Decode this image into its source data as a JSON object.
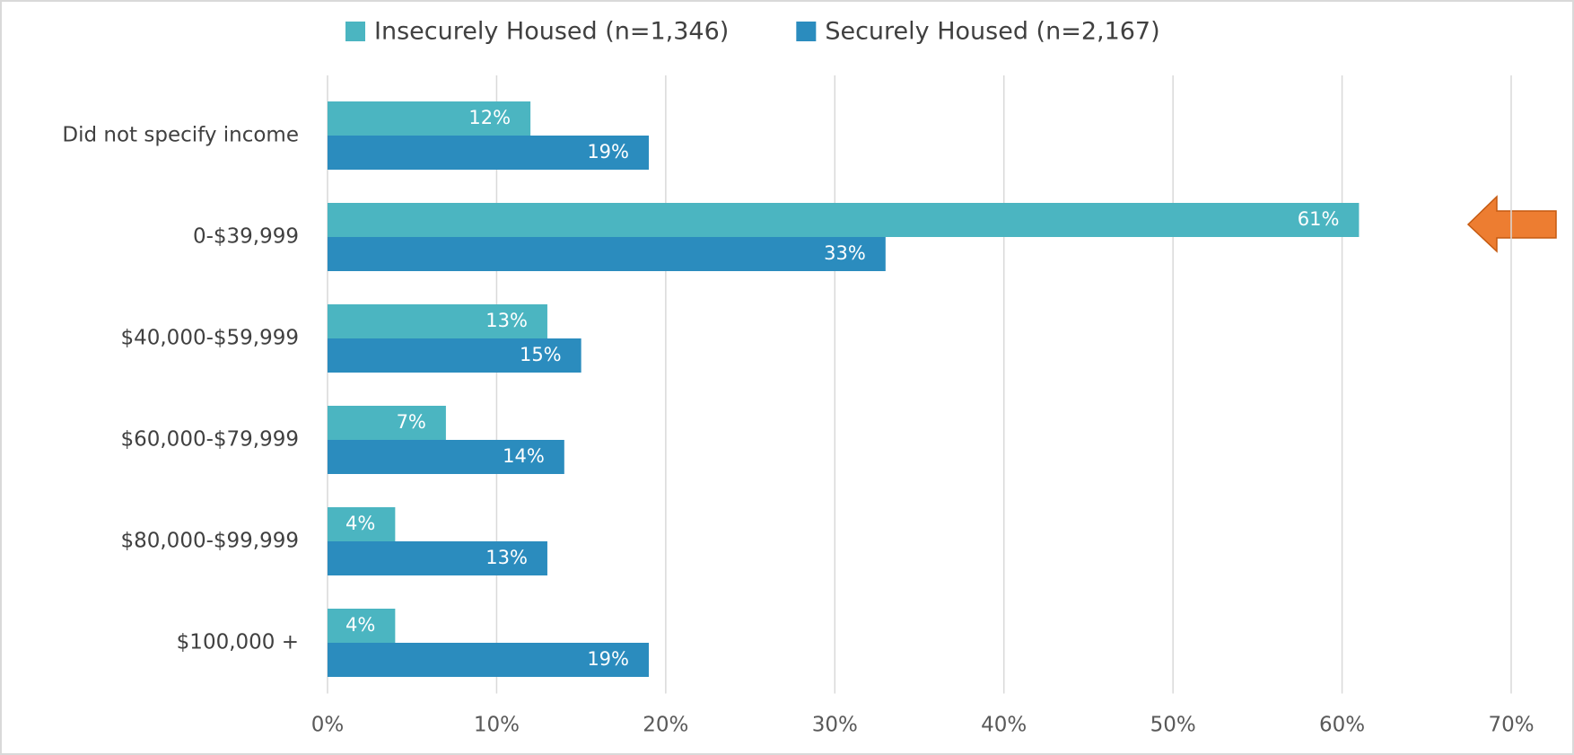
{
  "chart_data": {
    "type": "barh",
    "categories": [
      "Did not specify income",
      "0-$39,999",
      "$40,000-$59,999",
      "$60,000-$79,999",
      "$80,000-$99,999",
      "$100,000 +"
    ],
    "series": [
      {
        "name": "Insecurely Housed (n=1,346)",
        "color": "#4bb5c1",
        "values": [
          12,
          61,
          13,
          7,
          4,
          4
        ],
        "value_labels": [
          "12%",
          "61%",
          "13%",
          "7%",
          "4%",
          "4%"
        ]
      },
      {
        "name": "Securely Housed (n=2,167)",
        "color": "#2b8cbe",
        "values": [
          19,
          33,
          15,
          14,
          13,
          19
        ],
        "value_labels": [
          "19%",
          "33%",
          "15%",
          "14%",
          "13%",
          "19%"
        ]
      }
    ],
    "xlim": [
      0,
      70
    ],
    "xticks": [
      {
        "value": 0,
        "label": "0%"
      },
      {
        "value": 10,
        "label": "10%"
      },
      {
        "value": 20,
        "label": "20%"
      },
      {
        "value": 30,
        "label": "30%"
      },
      {
        "value": 40,
        "label": "40%"
      },
      {
        "value": 50,
        "label": "50%"
      },
      {
        "value": 60,
        "label": "60%"
      },
      {
        "value": 70,
        "label": "70%"
      }
    ],
    "grid": true,
    "legend": "top"
  }
}
